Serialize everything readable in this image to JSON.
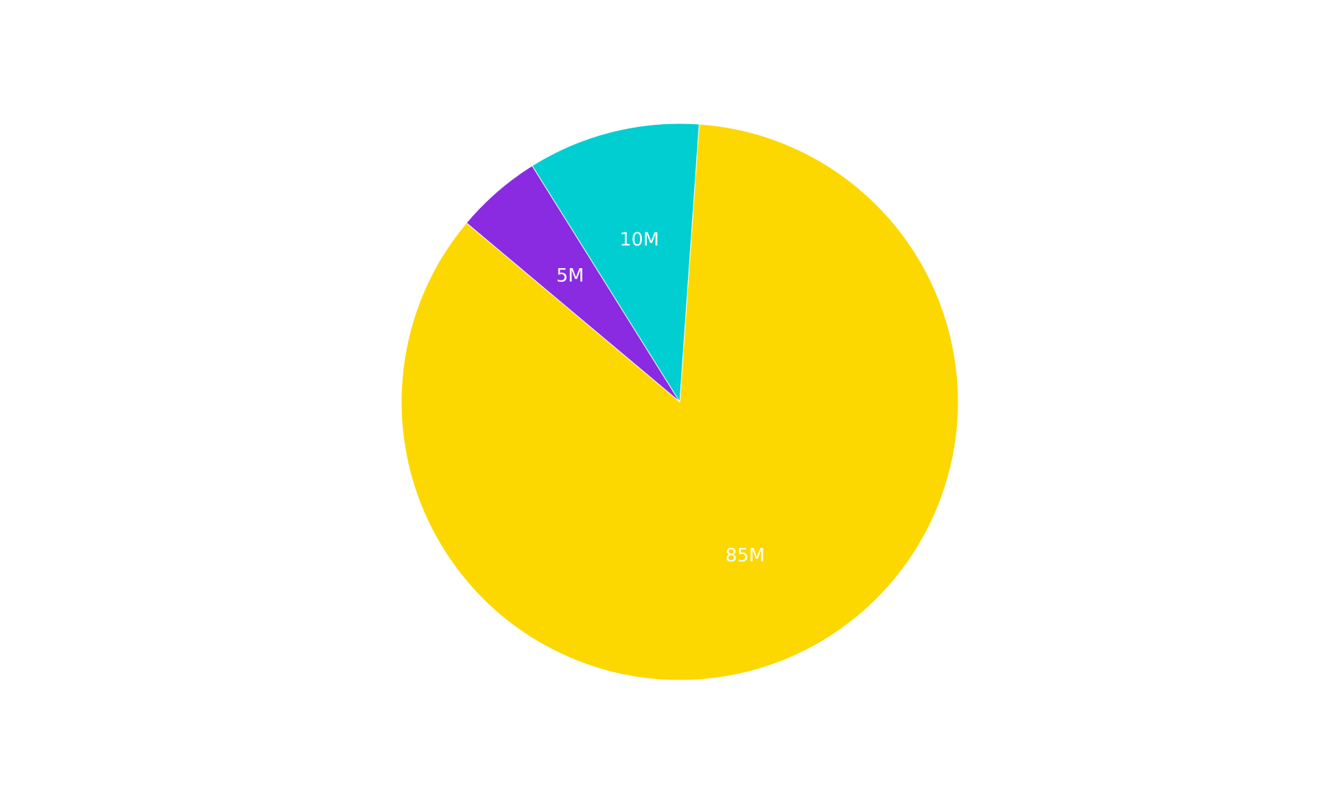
{
  "chart_data": {
    "type": "pie",
    "title": "",
    "series": [
      {
        "values": [
          85,
          5,
          10
        ],
        "data_labels": [
          "85M",
          "5M",
          "10M"
        ]
      }
    ],
    "slice_colors": [
      "#FDD700",
      "#8A2BE2",
      "#00CED1"
    ],
    "legend": "none"
  }
}
